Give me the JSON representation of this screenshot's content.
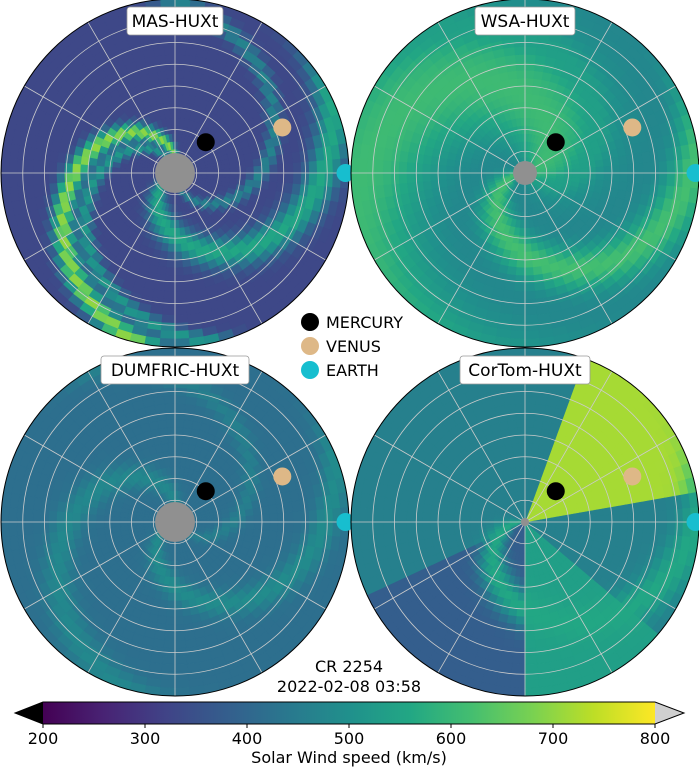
{
  "chart_data": {
    "type": "heatmap",
    "projection": "polar",
    "panels": [
      {
        "id": "mas",
        "title": "MAS-HUXt",
        "base_speed": 330,
        "inner_disc": "large",
        "streams": [
          {
            "phase": 3.55,
            "width": 0.22,
            "speed": 560
          },
          {
            "phase": 1.3,
            "width": 0.14,
            "speed": 700
          },
          {
            "phase": 1.75,
            "width": 0.1,
            "speed": 520
          },
          {
            "phase": 4.7,
            "width": 0.1,
            "speed": 470
          }
        ]
      },
      {
        "id": "wsa",
        "title": "WSA-HUXt",
        "base_speed": 470,
        "inner_disc": "small",
        "streams": [
          {
            "phase": 3.2,
            "width": 0.3,
            "speed": 620
          },
          {
            "phase": 0.15,
            "width": 0.9,
            "speed": 610
          },
          {
            "phase": 5.3,
            "width": 0.18,
            "speed": 540
          }
        ]
      },
      {
        "id": "dumfric",
        "title": "DUMFRIC-HUXt",
        "base_speed": 420,
        "inner_disc": "large",
        "streams": [
          {
            "phase": 3.5,
            "width": 0.18,
            "speed": 490
          },
          {
            "phase": 1.2,
            "width": 0.2,
            "speed": 480
          },
          {
            "phase": 5.2,
            "width": 0.12,
            "speed": 460
          }
        ]
      },
      {
        "id": "cortom",
        "title": "CorTom-HUXt",
        "base_speed": 460,
        "inner_disc": "tiny",
        "sectors": [
          {
            "from_deg": 12,
            "to_deg": 72,
            "speed": 720
          },
          {
            "from_deg": 205,
            "to_deg": 270,
            "speed": 380
          },
          {
            "from_deg": 270,
            "to_deg": 318,
            "speed": 540
          }
        ],
        "streams": [
          {
            "phase": 3.1,
            "width": 0.25,
            "speed": 560
          }
        ]
      }
    ],
    "planets": [
      {
        "name": "MERCURY",
        "color": "#000000",
        "r_frac": 0.25,
        "angle_deg": 45
      },
      {
        "name": "VENUS",
        "color": "#deb887",
        "r_frac": 0.67,
        "angle_deg": 23
      },
      {
        "name": "EARTH",
        "color": "#17becf",
        "r_frac": 0.98,
        "angle_deg": 0
      }
    ],
    "legend": {
      "items": [
        "MERCURY",
        "VENUS",
        "EARTH"
      ],
      "placement": "center"
    },
    "caption_lines": [
      "CR 2254",
      "2022-02-08 03:58"
    ],
    "colorbar": {
      "label": "Solar Wind speed (km/s)",
      "vmin": 200,
      "vmax": 800,
      "ticks": [
        200,
        300,
        400,
        500,
        600,
        700,
        800
      ],
      "extend": "both",
      "colormap": "viridis",
      "under_color": "#000000",
      "over_color": "#cfcfcf"
    },
    "grid": {
      "rings": 7,
      "spokes_deg": 30,
      "color": "#cccccc"
    }
  }
}
